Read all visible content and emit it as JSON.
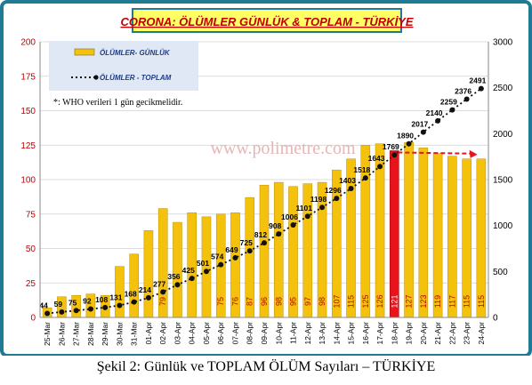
{
  "chart_data": {
    "type": "bar",
    "title": "CORONA: ÖLÜMLER GÜNLÜK & TOPLAM - TÜRKİYE",
    "categories": [
      "25-Mar",
      "26-Mar",
      "27-Mar",
      "28-Mar",
      "29-Mar",
      "30-Mar",
      "31-Mar",
      "01-Apr",
      "02-Apr",
      "03-Apr",
      "04-Apr",
      "05-Apr",
      "06-Apr",
      "07-Apr",
      "08-Apr",
      "09-Apr",
      "10-Apr",
      "11-Apr",
      "12-Apr",
      "13-Apr",
      "14-Apr",
      "15-Apr",
      "16-Apr",
      "17-Apr",
      "18-Apr",
      "19-Apr",
      "20-Apr",
      "21-Apr",
      "22-Apr",
      "23-Apr",
      "24-Apr"
    ],
    "series": [
      {
        "name": "ÖLÜMLER- GÜNLÜK",
        "axis": "left",
        "values": [
          7,
          15,
          16,
          17,
          16,
          37,
          46,
          63,
          79,
          69,
          76,
          73,
          75,
          76,
          87,
          96,
          98,
          95,
          97,
          98,
          107,
          115,
          125,
          126,
          121,
          127,
          123,
          119,
          117,
          115,
          115
        ],
        "labels": [
          "",
          "",
          "",
          "",
          "",
          "",
          "",
          "",
          "79",
          "",
          "",
          "",
          "75",
          "76",
          "87",
          "96",
          "98",
          "95",
          "97",
          "98",
          "107",
          "115",
          "125",
          "126",
          "121",
          "127",
          "123",
          "119",
          "117",
          "115",
          "115"
        ]
      },
      {
        "name": "ÖLÜMLER - TOPLAM",
        "axis": "right",
        "values": [
          44,
          59,
          75,
          92,
          108,
          131,
          168,
          214,
          277,
          356,
          425,
          501,
          574,
          649,
          725,
          812,
          908,
          1006,
          1101,
          1198,
          1296,
          1403,
          1518,
          1643,
          1769,
          1890,
          2017,
          2140,
          2259,
          2376,
          2491
        ],
        "labels": [
          "44",
          "59",
          "75",
          "92",
          "108",
          "131",
          "168",
          "214",
          "277",
          "356",
          "425",
          "501",
          "574",
          "649",
          "725",
          "812",
          "908",
          "1006",
          "1101",
          "1198",
          "1296",
          "1403",
          "1518",
          "1643",
          "1769",
          "1890",
          "2017",
          "2140",
          "2259",
          "2376",
          "2491"
        ]
      }
    ],
    "highlight_index": 24,
    "y_left": {
      "min": 0,
      "max": 200,
      "ticks": [
        "0",
        "25",
        "50",
        "75",
        "100",
        "125",
        "150",
        "175",
        "200"
      ]
    },
    "y_right": {
      "min": 0,
      "max": 3000,
      "ticks": [
        "0",
        "500",
        "1000",
        "1500",
        "2000",
        "2500",
        "3000"
      ]
    },
    "note": "*: WHO verileri 1 gün gecikmelidir.",
    "watermark": "www.polimetre.com",
    "caption": "Şekil 2: Günlük ve TOPLAM ÖLÜM Sayıları – TÜRKİYE",
    "colors": {
      "bar": "#f4c20d",
      "bar_highlight": "#e8131b",
      "line": "#111111",
      "trend_arrow": "#e8131b",
      "plot_bg": "#ffffff",
      "frame": "#1f7a93",
      "title_box": "#ffff66",
      "title_text": "#c00000",
      "tick_text": "#c00000",
      "legend_bg": "#dfe8f4",
      "bar_label": "#c00000"
    }
  }
}
